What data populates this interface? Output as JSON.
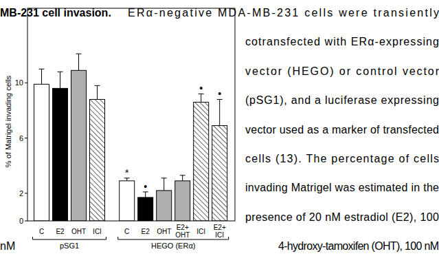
{
  "caption": {
    "heading": "MB-231 cell invasion.",
    "first_line": "ERα-negative MDA-MB-231 cells were transiently",
    "lines": [
      "cotransfected with ERα-expressing",
      "vector (HEGO) or control vector",
      "(pSG1), and a luciferase expressing",
      "vector used as a marker of transfected",
      "cells (13). The percentage of cells",
      "invading Matrigel was estimated in the",
      "presence of 20 nM estradiol (E2), 100"
    ],
    "last_line": [
      "nM",
      "4-hydroxy-tamoxifen (OHT), 100 nM"
    ]
  },
  "chart_data": {
    "type": "bar",
    "y_label": "% of Matrigel invading cells",
    "ylim": [
      0,
      15.4
    ],
    "yticks": [
      0,
      2,
      6,
      10
    ],
    "grid": false,
    "groups": [
      {
        "label": "pSG1",
        "categories": [
          "C",
          "E2",
          "OHT",
          "ICI"
        ],
        "values": [
          9.9,
          9.6,
          10.9,
          8.8
        ],
        "errors": [
          1.1,
          1.2,
          1.2,
          1.0
        ],
        "colors": [
          "#ffffff",
          "#000000",
          "#b0b0b0",
          "hatch"
        ],
        "annotations": [
          null,
          null,
          null,
          null
        ]
      },
      {
        "label": "HEGO (ERα)",
        "categories": [
          "C",
          "E2",
          "OHT",
          "E2+\nOHT",
          "ICI",
          "E2+\nICI"
        ],
        "values": [
          2.9,
          1.7,
          2.2,
          2.9,
          8.6,
          6.9
        ],
        "errors": [
          0.2,
          0.4,
          0.9,
          0.4,
          0.6,
          1.9
        ],
        "colors": [
          "#ffffff",
          "#000000",
          "#b0b0b0",
          "#b0b0b0",
          "hatch",
          "hatch"
        ],
        "annotations": [
          "*",
          "•",
          null,
          null,
          "•",
          "•"
        ]
      }
    ]
  }
}
